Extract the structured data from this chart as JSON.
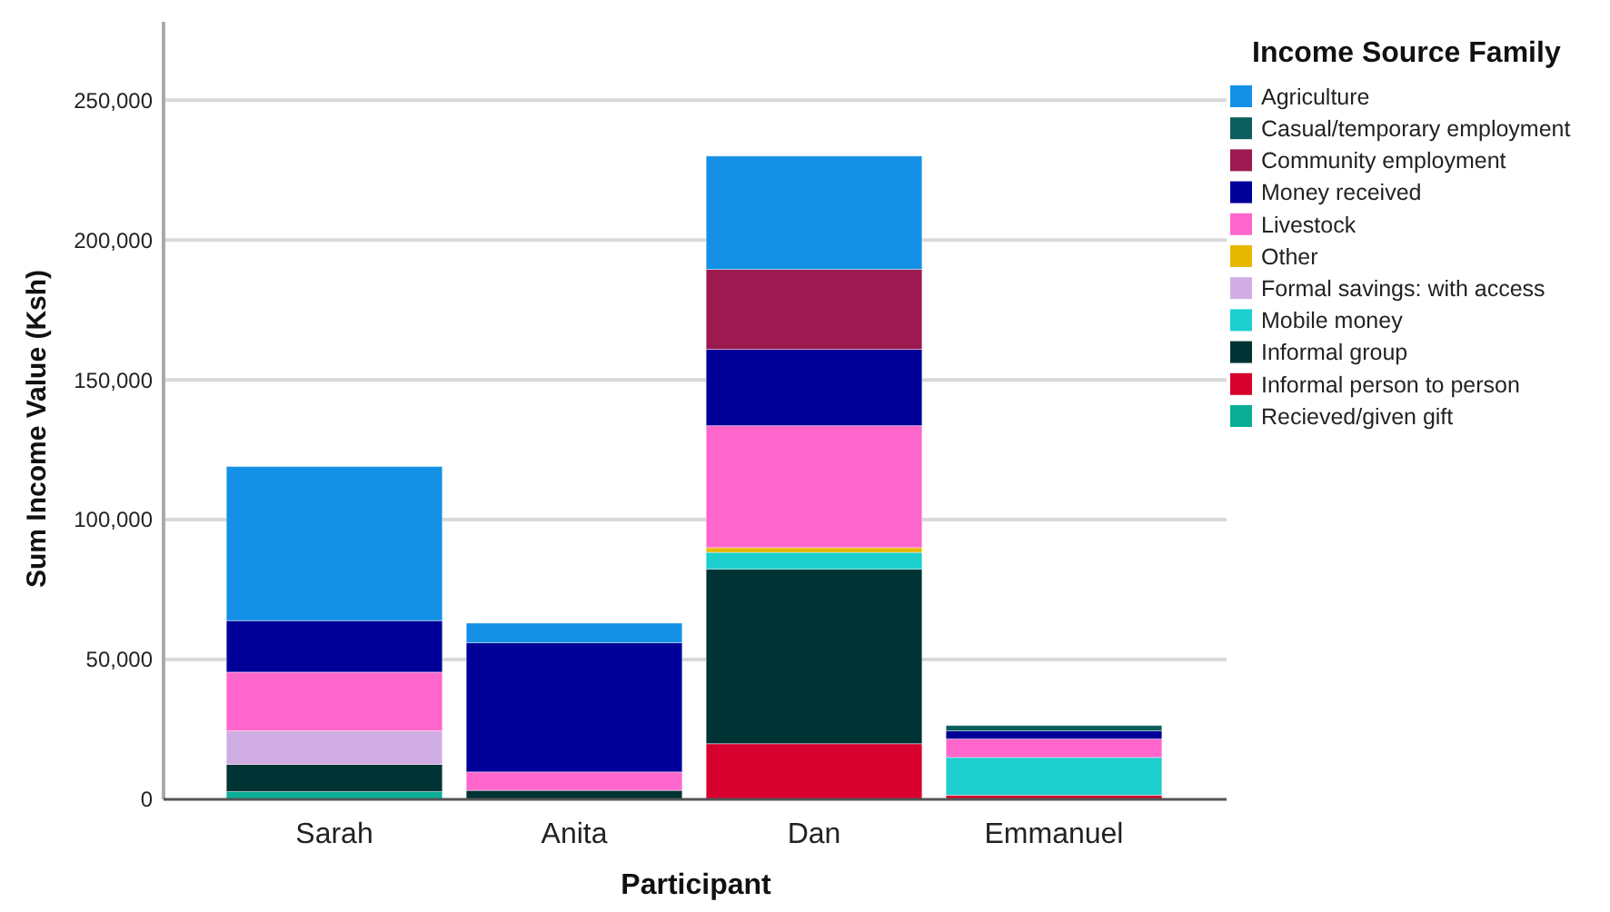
{
  "chart_data": {
    "type": "bar",
    "stacked": true,
    "xlabel": "Participant",
    "ylabel": "Sum Income Value (Ksh)",
    "legend_title": "Income Source Family",
    "legend": "right",
    "grid": "y",
    "categories": [
      "Sarah",
      "Anita",
      "Dan",
      "Emmanuel"
    ],
    "ylim": [
      0,
      278000
    ],
    "yticks": [
      {
        "value": 0,
        "label": "0"
      },
      {
        "value": 50000,
        "label": "50,000"
      },
      {
        "value": 100000,
        "label": "100,000"
      },
      {
        "value": 150000,
        "label": "150,000"
      },
      {
        "value": 200000,
        "label": "200,000"
      },
      {
        "value": 250000,
        "label": "250,000"
      }
    ],
    "series": [
      {
        "name": "Recieved/given gift",
        "color": "#0aae96",
        "values": [
          2800,
          null,
          null,
          null
        ]
      },
      {
        "name": "Informal person to person",
        "color": "#d7002f",
        "values": [
          null,
          null,
          19900,
          1500
        ]
      },
      {
        "name": "Informal group",
        "color": "#003333",
        "values": [
          9700,
          3200,
          62400,
          null
        ]
      },
      {
        "name": "Mobile money",
        "color": "#1dcfcf",
        "values": [
          null,
          null,
          6000,
          13500
        ]
      },
      {
        "name": "Formal savings: with access",
        "color": "#d0aee3",
        "values": [
          12000,
          null,
          null,
          null
        ]
      },
      {
        "name": "Other",
        "color": "#e6b800",
        "values": [
          null,
          null,
          1700,
          null
        ]
      },
      {
        "name": "Livestock",
        "color": "#ff66cc",
        "values": [
          21000,
          6600,
          43600,
          6600
        ]
      },
      {
        "name": "Money received",
        "color": "#000099",
        "values": [
          18400,
          46200,
          27300,
          2900
        ]
      },
      {
        "name": "Community employment",
        "color": "#9c1a4f",
        "values": [
          null,
          null,
          28600,
          null
        ]
      },
      {
        "name": "Casual/temporary employment",
        "color": "#0a5e5b",
        "values": [
          null,
          null,
          null,
          1900
        ]
      },
      {
        "name": "Agriculture",
        "color": "#1491e6",
        "values": [
          55100,
          7000,
          40500,
          null
        ]
      }
    ]
  }
}
